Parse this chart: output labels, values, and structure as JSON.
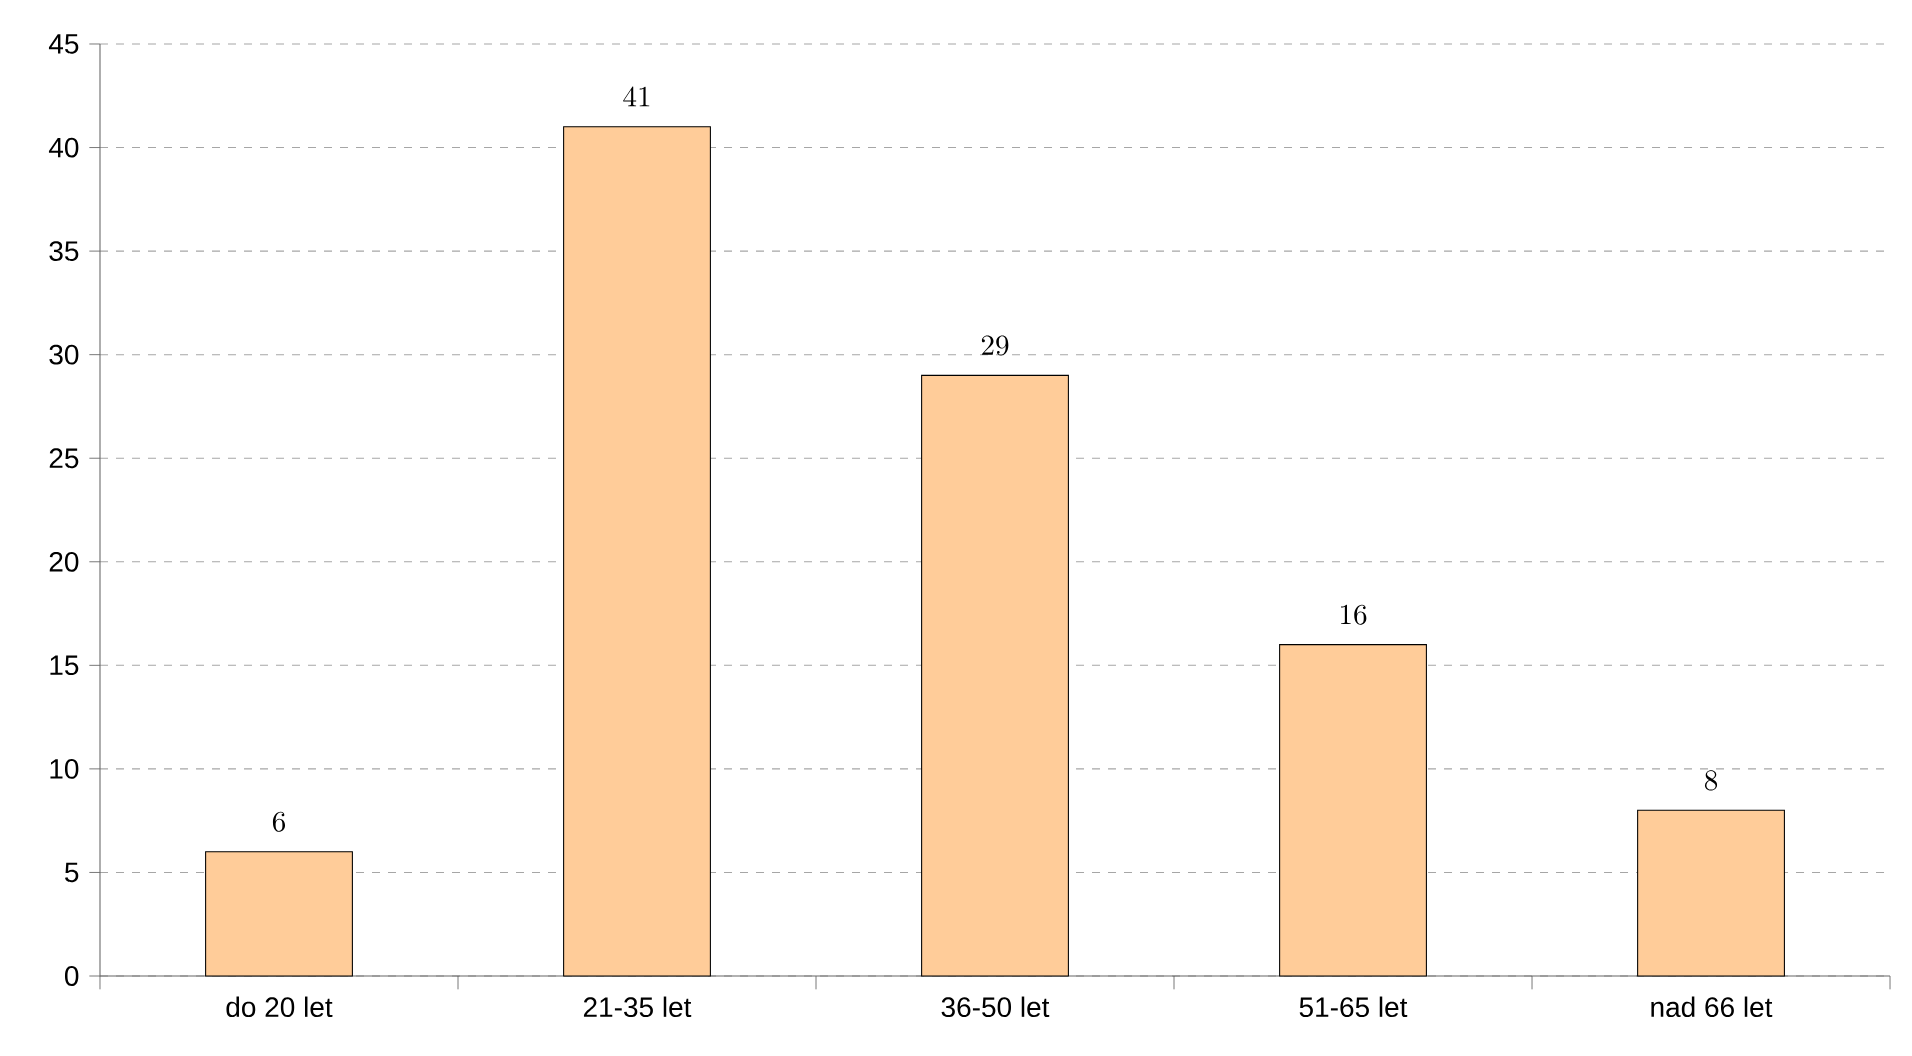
{
  "chart_data": {
    "type": "bar",
    "categories": [
      "do 20 let",
      "21-35 let",
      "36-50 let",
      "51-65 let",
      "nad 66 let"
    ],
    "values": [
      6,
      41,
      29,
      16,
      8
    ],
    "color": "#ffcc99",
    "ylim": [
      0,
      45
    ],
    "yticks": [
      0,
      5,
      10,
      15,
      20,
      25,
      30,
      35,
      40,
      45
    ],
    "grid": "y",
    "data_labels": true
  }
}
